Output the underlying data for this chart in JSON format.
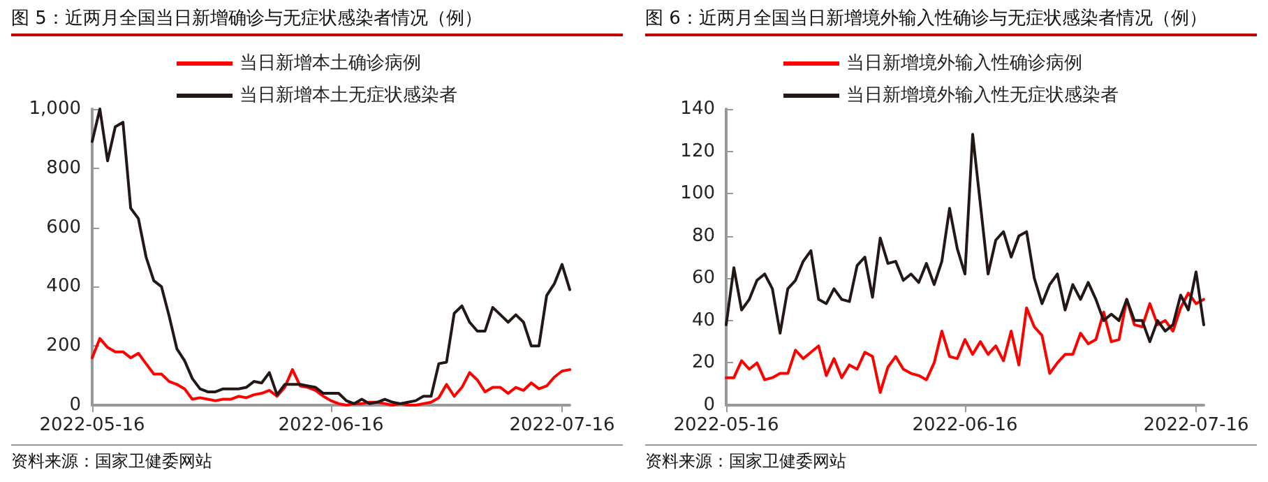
{
  "chart_data": [
    {
      "type": "line",
      "title": "图 5：近两月全国当日新增确诊与无症状感染者情况（例）",
      "x": [
        "2022-05-16",
        "2022-05-17",
        "2022-05-18",
        "2022-05-19",
        "2022-05-20",
        "2022-05-21",
        "2022-05-22",
        "2022-05-23",
        "2022-05-24",
        "2022-05-25",
        "2022-05-26",
        "2022-05-27",
        "2022-05-28",
        "2022-05-29",
        "2022-05-30",
        "2022-05-31",
        "2022-06-01",
        "2022-06-02",
        "2022-06-03",
        "2022-06-04",
        "2022-06-05",
        "2022-06-06",
        "2022-06-07",
        "2022-06-08",
        "2022-06-09",
        "2022-06-10",
        "2022-06-11",
        "2022-06-12",
        "2022-06-13",
        "2022-06-14",
        "2022-06-15",
        "2022-06-16",
        "2022-06-17",
        "2022-06-18",
        "2022-06-19",
        "2022-06-20",
        "2022-06-21",
        "2022-06-22",
        "2022-06-23",
        "2022-06-24",
        "2022-06-25",
        "2022-06-26",
        "2022-06-27",
        "2022-06-28",
        "2022-06-29",
        "2022-06-30",
        "2022-07-01",
        "2022-07-02",
        "2022-07-03",
        "2022-07-04",
        "2022-07-05",
        "2022-07-06",
        "2022-07-07",
        "2022-07-08",
        "2022-07-09",
        "2022-07-10",
        "2022-07-11",
        "2022-07-12",
        "2022-07-13",
        "2022-07-14",
        "2022-07-15",
        "2022-07-16",
        "2022-07-17"
      ],
      "series": [
        {
          "name": "当日新增本土确诊病例",
          "color": "#ff0000",
          "values": [
            160,
            225,
            195,
            180,
            180,
            160,
            175,
            140,
            105,
            105,
            80,
            70,
            55,
            20,
            25,
            20,
            15,
            20,
            20,
            30,
            25,
            35,
            40,
            50,
            30,
            60,
            120,
            65,
            60,
            50,
            30,
            15,
            5,
            0,
            5,
            5,
            10,
            10,
            5,
            0,
            5,
            0,
            0,
            5,
            10,
            25,
            70,
            30,
            60,
            110,
            85,
            45,
            60,
            60,
            40,
            60,
            50,
            75,
            55,
            65,
            95,
            115,
            120
          ]
        },
        {
          "name": "当日新增本土无症状感染者",
          "color": "#231815",
          "values": [
            890,
            1000,
            825,
            940,
            955,
            665,
            630,
            500,
            420,
            400,
            300,
            190,
            150,
            90,
            55,
            45,
            45,
            55,
            55,
            55,
            60,
            80,
            75,
            110,
            35,
            70,
            70,
            70,
            65,
            60,
            40,
            40,
            40,
            15,
            5,
            20,
            5,
            10,
            20,
            10,
            5,
            10,
            15,
            30,
            30,
            140,
            145,
            310,
            335,
            280,
            250,
            250,
            330,
            305,
            280,
            305,
            280,
            200,
            200,
            370,
            410,
            475,
            390
          ]
        }
      ],
      "xlim": [
        "2022-05-16",
        "2022-07-17"
      ],
      "xticks": [
        "2022-05-16",
        "2022-06-16",
        "2022-07-16"
      ],
      "ylim": [
        0,
        1000
      ],
      "yticks": [
        0,
        200,
        400,
        600,
        800,
        {
          "value": 1000,
          "label": "1,000"
        }
      ],
      "grid": false,
      "legend": "top",
      "marker": "none",
      "line_style": "solid",
      "annotations": [
        "资料来源：国家卫健委网站"
      ]
    },
    {
      "type": "line",
      "title": "图 6：近两月全国当日新增境外输入性确诊与无症状感染者情况（例）",
      "x": [
        "2022-05-16",
        "2022-05-17",
        "2022-05-18",
        "2022-05-19",
        "2022-05-20",
        "2022-05-21",
        "2022-05-22",
        "2022-05-23",
        "2022-05-24",
        "2022-05-25",
        "2022-05-26",
        "2022-05-27",
        "2022-05-28",
        "2022-05-29",
        "2022-05-30",
        "2022-05-31",
        "2022-06-01",
        "2022-06-02",
        "2022-06-03",
        "2022-06-04",
        "2022-06-05",
        "2022-06-06",
        "2022-06-07",
        "2022-06-08",
        "2022-06-09",
        "2022-06-10",
        "2022-06-11",
        "2022-06-12",
        "2022-06-13",
        "2022-06-14",
        "2022-06-15",
        "2022-06-16",
        "2022-06-17",
        "2022-06-18",
        "2022-06-19",
        "2022-06-20",
        "2022-06-21",
        "2022-06-22",
        "2022-06-23",
        "2022-06-24",
        "2022-06-25",
        "2022-06-26",
        "2022-06-27",
        "2022-06-28",
        "2022-06-29",
        "2022-06-30",
        "2022-07-01",
        "2022-07-02",
        "2022-07-03",
        "2022-07-04",
        "2022-07-05",
        "2022-07-06",
        "2022-07-07",
        "2022-07-08",
        "2022-07-09",
        "2022-07-10",
        "2022-07-11",
        "2022-07-12",
        "2022-07-13",
        "2022-07-14",
        "2022-07-15",
        "2022-07-16",
        "2022-07-17"
      ],
      "series": [
        {
          "name": "当日新增境外输入性确诊病例",
          "color": "#ff0000",
          "values": [
            13,
            13,
            21,
            17,
            20,
            12,
            13,
            15,
            15,
            26,
            22,
            25,
            28,
            14,
            22,
            13,
            19,
            17,
            25,
            23,
            6,
            18,
            23,
            17,
            15,
            14,
            12,
            20,
            35,
            23,
            22,
            31,
            24,
            30,
            24,
            28,
            21,
            35,
            19,
            46,
            37,
            33,
            15,
            20,
            24,
            24,
            34,
            29,
            31,
            44,
            30,
            31,
            50,
            38,
            37,
            48,
            38,
            40,
            35,
            46,
            53,
            48,
            50
          ]
        },
        {
          "name": "当日新增境外输入性无症状感染者",
          "color": "#231815",
          "values": [
            38,
            65,
            45,
            50,
            59,
            62,
            55,
            34,
            55,
            59,
            68,
            73,
            50,
            48,
            55,
            50,
            49,
            66,
            70,
            51,
            79,
            67,
            68,
            59,
            62,
            58,
            67,
            57,
            68,
            93,
            74,
            62,
            128,
            95,
            62,
            78,
            82,
            70,
            80,
            82,
            60,
            48,
            57,
            62,
            45,
            57,
            50,
            58,
            50,
            40,
            43,
            40,
            50,
            40,
            40,
            30,
            40,
            35,
            38,
            52,
            45,
            63,
            38
          ]
        }
      ],
      "xlim": [
        "2022-05-16",
        "2022-07-17"
      ],
      "xticks": [
        "2022-05-16",
        "2022-06-16",
        "2022-07-16"
      ],
      "ylim": [
        0,
        140
      ],
      "yticks": [
        0,
        20,
        40,
        60,
        80,
        100,
        120,
        140
      ],
      "grid": false,
      "legend": "top",
      "marker": "none",
      "line_style": "solid",
      "annotations": [
        "资料来源：国家卫健委网站"
      ]
    }
  ]
}
